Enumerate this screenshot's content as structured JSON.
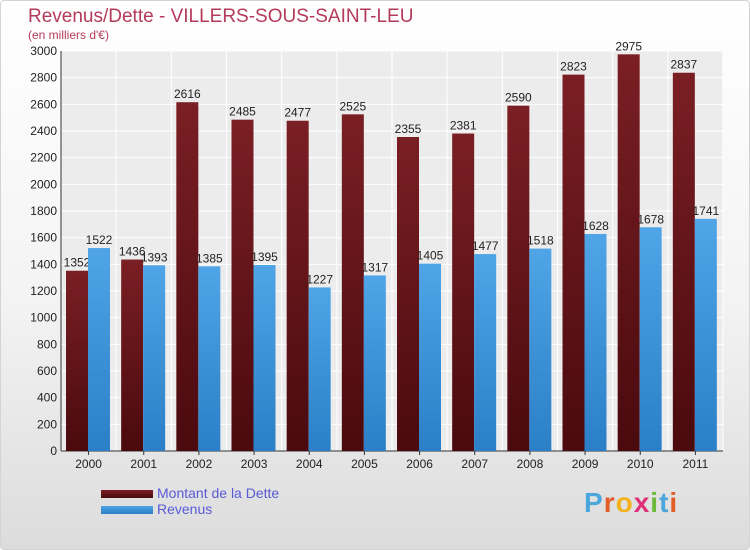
{
  "colors": {
    "debt": "#7a1f24",
    "debt_dark": "#4a0a0e",
    "revenue": "#4fa5e6",
    "revenue_dark": "#2b7fc7",
    "title": "#b43a5c",
    "legend_text": "#5a5ad6"
  },
  "logo": {
    "letters": [
      "P",
      "r",
      "o",
      "x",
      "i",
      "t",
      "i"
    ],
    "letter_colors": [
      "#4ca6de",
      "#e35d2a",
      "#f2b21c",
      "#e0307a",
      "#6cb83a",
      "#4ca6de",
      "#e35d2a"
    ]
  },
  "chart_data": {
    "type": "bar",
    "title": "Revenus/Dette - VILLERS-SOUS-SAINT-LEU",
    "subtitle": "(en milliers d'€)",
    "xlabel": "",
    "ylabel": "",
    "ylim": [
      0,
      3000
    ],
    "ytick_step": 200,
    "grid": true,
    "legend_position": "bottom-left",
    "categories": [
      "2000",
      "2001",
      "2002",
      "2003",
      "2004",
      "2005",
      "2006",
      "2007",
      "2008",
      "2009",
      "2010",
      "2011"
    ],
    "series": [
      {
        "name": "Montant de la Dette",
        "values": [
          1352,
          1436,
          2616,
          2485,
          2477,
          2525,
          2355,
          2381,
          2590,
          2823,
          2975,
          2837
        ]
      },
      {
        "name": "Revenus",
        "values": [
          1522,
          1393,
          1385,
          1395,
          1227,
          1317,
          1405,
          1477,
          1518,
          1628,
          1678,
          1741
        ]
      }
    ]
  }
}
